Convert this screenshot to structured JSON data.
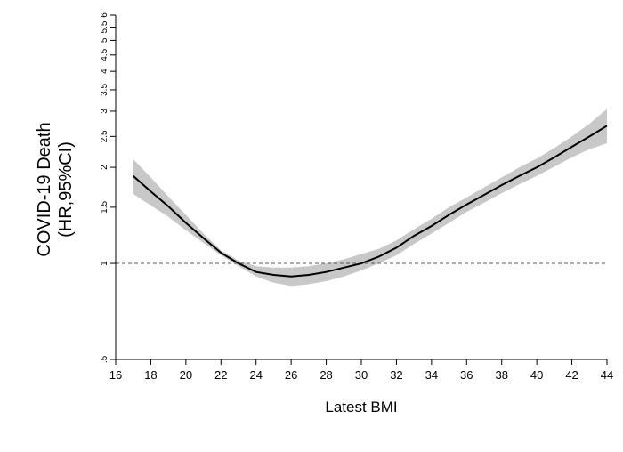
{
  "chart_data": {
    "type": "line",
    "ylabel": [
      "COVID-19 Death",
      "(HR,95%CI)"
    ],
    "xlabel": "Latest BMI",
    "x": [
      17,
      18,
      19,
      20,
      21,
      22,
      23,
      24,
      25,
      26,
      27,
      28,
      29,
      30,
      31,
      32,
      33,
      34,
      35,
      36,
      37,
      38,
      39,
      40,
      41,
      42,
      43,
      44
    ],
    "values": [
      1.88,
      1.68,
      1.51,
      1.34,
      1.2,
      1.08,
      1.0,
      0.94,
      0.92,
      0.91,
      0.92,
      0.94,
      0.97,
      1.0,
      1.05,
      1.12,
      1.22,
      1.31,
      1.42,
      1.53,
      1.64,
      1.76,
      1.88,
      2.0,
      2.15,
      2.32,
      2.5,
      2.7
    ],
    "lower": [
      1.65,
      1.52,
      1.4,
      1.27,
      1.16,
      1.06,
      0.98,
      0.91,
      0.87,
      0.85,
      0.86,
      0.88,
      0.91,
      0.95,
      1.0,
      1.06,
      1.15,
      1.24,
      1.34,
      1.45,
      1.55,
      1.66,
      1.77,
      1.88,
      2.01,
      2.15,
      2.28,
      2.38
    ],
    "upper": [
      2.12,
      1.86,
      1.62,
      1.42,
      1.24,
      1.1,
      1.02,
      0.98,
      0.97,
      0.97,
      0.98,
      1.0,
      1.03,
      1.07,
      1.11,
      1.18,
      1.28,
      1.38,
      1.5,
      1.61,
      1.73,
      1.86,
      2.0,
      2.13,
      2.3,
      2.5,
      2.74,
      3.05
    ],
    "color": "#000000",
    "band_color": "#c8c8c8",
    "reference_line": 1,
    "xlim": [
      16,
      44
    ],
    "xticks": [
      16,
      18,
      20,
      22,
      24,
      26,
      28,
      30,
      32,
      34,
      36,
      38,
      40,
      42,
      44
    ],
    "ylim": [
      0.5,
      6
    ],
    "ylog": true,
    "yticks": [
      {
        "value": 0.5,
        "label": ".5"
      },
      1,
      1.5,
      2,
      2.5,
      3,
      3.5,
      4,
      4.5,
      5,
      5.5,
      6
    ]
  }
}
